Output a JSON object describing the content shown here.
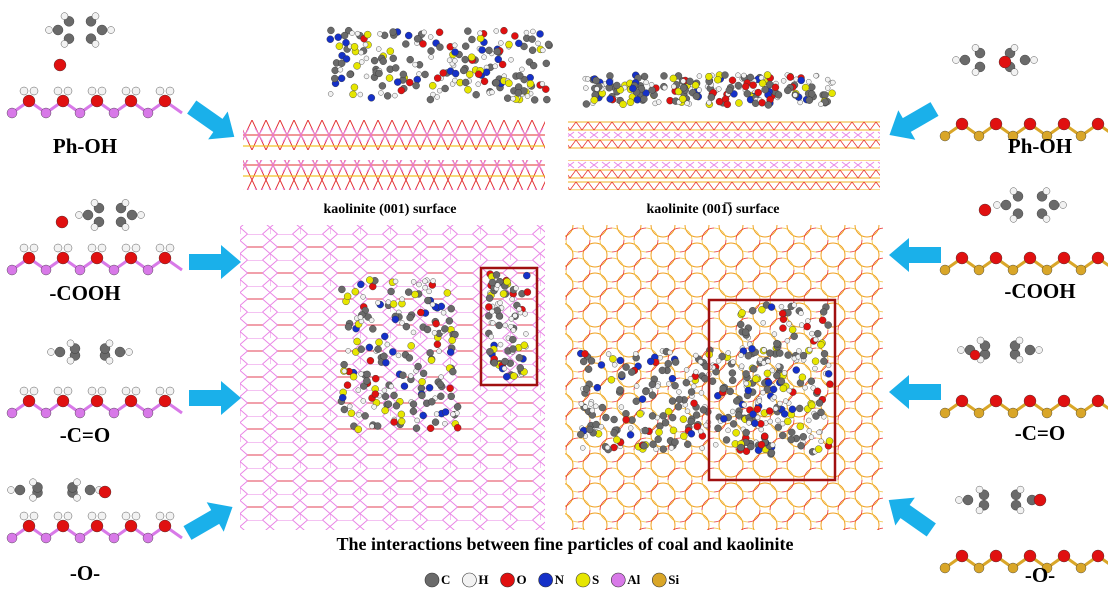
{
  "left_labels": [
    "Ph-OH",
    "-COOH",
    "-C=O",
    "-O-"
  ],
  "right_labels": [
    "Ph-OH",
    "-COOH",
    "-C=O",
    "-O-"
  ],
  "surfaces": [
    "kaolinite (001) surface",
    "kaolinite (001̅) surface"
  ],
  "caption": "The interactions between fine particles of coal and kaolinite",
  "legend": [
    {
      "symbol": "C",
      "color": "#6a6a6a"
    },
    {
      "symbol": "H",
      "color": "#f2f2f2"
    },
    {
      "symbol": "O",
      "color": "#e01010"
    },
    {
      "symbol": "N",
      "color": "#1530c8"
    },
    {
      "symbol": "S",
      "color": "#e6e600"
    },
    {
      "symbol": "Al",
      "color": "#d879e8"
    },
    {
      "symbol": "Si",
      "color": "#d9a628"
    }
  ]
}
